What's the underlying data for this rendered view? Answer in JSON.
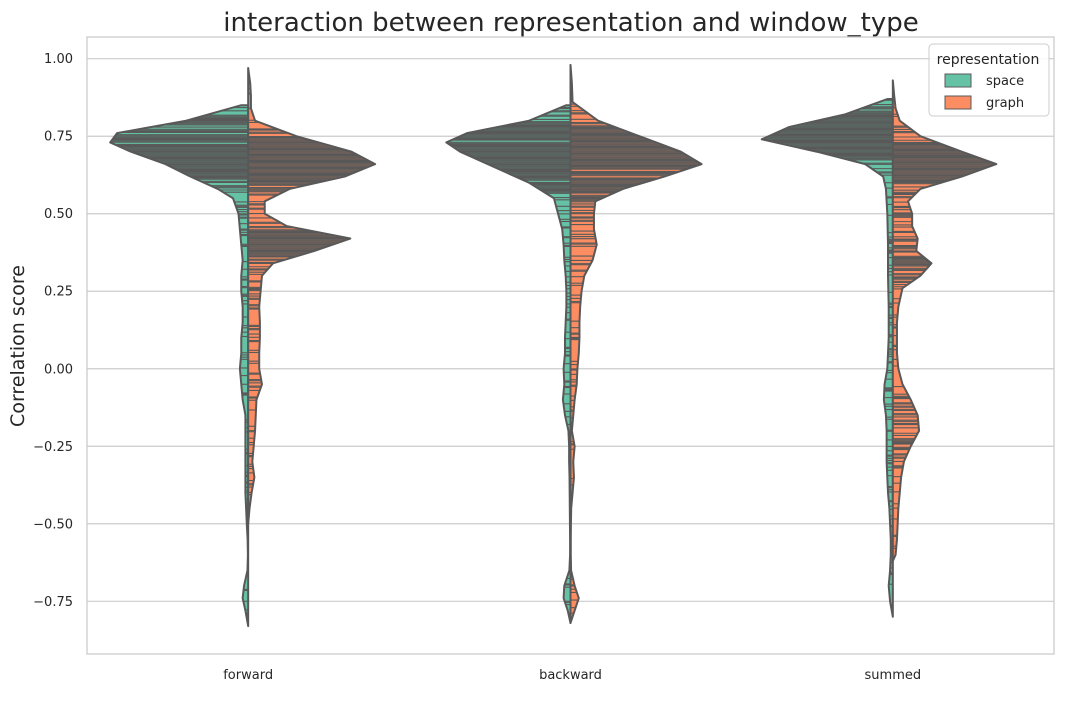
{
  "chart_data": {
    "type": "violin",
    "title": "interaction between representation and window_type",
    "xlabel": "",
    "ylabel": "Correlation score",
    "categories": [
      "forward",
      "backward",
      "summed"
    ],
    "ylim": [
      -0.92,
      1.07
    ],
    "yticks": [
      "1.00",
      "0.75",
      "0.50",
      "0.25",
      "0.00",
      "−0.25",
      "−0.50",
      "−0.75"
    ],
    "ytick_values": [
      1.0,
      0.75,
      0.5,
      0.25,
      0.0,
      -0.25,
      -0.5,
      -0.75
    ],
    "grid": "horizontal",
    "split": true,
    "inner": "stick",
    "legend": {
      "title": "representation",
      "placement": "top-right",
      "items": [
        {
          "name": "space",
          "color": "#66c2a5"
        },
        {
          "name": "graph",
          "color": "#fc8d62"
        }
      ]
    },
    "series": [
      {
        "name": "space",
        "color": "#66c2a5",
        "violins": [
          {
            "category": "forward",
            "range": [
              -0.83,
              0.85
            ],
            "density": [
              [
                0.85,
                0.05
              ],
              [
                0.8,
                0.45
              ],
              [
                0.76,
                0.95
              ],
              [
                0.73,
                1.0
              ],
              [
                0.7,
                0.85
              ],
              [
                0.66,
                0.6
              ],
              [
                0.62,
                0.42
              ],
              [
                0.58,
                0.22
              ],
              [
                0.55,
                0.11
              ],
              [
                0.5,
                0.07
              ],
              [
                0.45,
                0.06
              ],
              [
                0.4,
                0.05
              ],
              [
                0.35,
                0.04
              ],
              [
                0.3,
                0.05
              ],
              [
                0.25,
                0.05
              ],
              [
                0.2,
                0.04
              ],
              [
                0.15,
                0.04
              ],
              [
                0.1,
                0.05
              ],
              [
                0.05,
                0.05
              ],
              [
                0.0,
                0.06
              ],
              [
                -0.05,
                0.05
              ],
              [
                -0.1,
                0.04
              ],
              [
                -0.15,
                0.02
              ],
              [
                -0.2,
                0.02
              ],
              [
                -0.25,
                0.02
              ],
              [
                -0.3,
                0.02
              ],
              [
                -0.35,
                0.02
              ],
              [
                -0.4,
                0.02
              ],
              [
                -0.45,
                0.015
              ],
              [
                -0.5,
                0.01
              ],
              [
                -0.55,
                0.004
              ],
              [
                -0.6,
                0.002
              ],
              [
                -0.65,
                0.005
              ],
              [
                -0.7,
                0.03
              ],
              [
                -0.74,
                0.04
              ],
              [
                -0.78,
                0.02
              ],
              [
                -0.83,
                0.0
              ]
            ]
          },
          {
            "category": "backward",
            "range": [
              -0.82,
              0.85
            ],
            "density": [
              [
                0.85,
                0.03
              ],
              [
                0.8,
                0.3
              ],
              [
                0.76,
                0.75
              ],
              [
                0.73,
                0.9
              ],
              [
                0.7,
                0.8
              ],
              [
                0.65,
                0.55
              ],
              [
                0.6,
                0.3
              ],
              [
                0.55,
                0.12
              ],
              [
                0.5,
                0.09
              ],
              [
                0.45,
                0.06
              ],
              [
                0.4,
                0.05
              ],
              [
                0.35,
                0.045
              ],
              [
                0.3,
                0.035
              ],
              [
                0.25,
                0.03
              ],
              [
                0.2,
                0.03
              ],
              [
                0.15,
                0.035
              ],
              [
                0.1,
                0.04
              ],
              [
                0.05,
                0.04
              ],
              [
                0.0,
                0.05
              ],
              [
                -0.05,
                0.045
              ],
              [
                -0.1,
                0.055
              ],
              [
                -0.15,
                0.04
              ],
              [
                -0.2,
                0.015
              ],
              [
                -0.25,
                0.01
              ],
              [
                -0.3,
                0.01
              ],
              [
                -0.35,
                0.007
              ],
              [
                -0.4,
                0.006
              ],
              [
                -0.45,
                0.005
              ],
              [
                -0.5,
                0.004
              ],
              [
                -0.55,
                0.003
              ],
              [
                -0.6,
                0.003
              ],
              [
                -0.65,
                0.008
              ],
              [
                -0.7,
                0.045
              ],
              [
                -0.74,
                0.05
              ],
              [
                -0.78,
                0.02
              ],
              [
                -0.82,
                0.0
              ]
            ]
          },
          {
            "category": "summed",
            "range": [
              -0.8,
              0.87
            ],
            "density": [
              [
                0.87,
                0.04
              ],
              [
                0.82,
                0.35
              ],
              [
                0.78,
                0.75
              ],
              [
                0.74,
                0.95
              ],
              [
                0.7,
                0.55
              ],
              [
                0.66,
                0.2
              ],
              [
                0.62,
                0.07
              ],
              [
                0.58,
                0.05
              ],
              [
                0.5,
                0.04
              ],
              [
                0.4,
                0.035
              ],
              [
                0.3,
                0.035
              ],
              [
                0.2,
                0.03
              ],
              [
                0.1,
                0.03
              ],
              [
                0.0,
                0.04
              ],
              [
                -0.05,
                0.06
              ],
              [
                -0.1,
                0.065
              ],
              [
                -0.15,
                0.05
              ],
              [
                -0.2,
                0.045
              ],
              [
                -0.25,
                0.045
              ],
              [
                -0.3,
                0.045
              ],
              [
                -0.35,
                0.04
              ],
              [
                -0.4,
                0.035
              ],
              [
                -0.45,
                0.025
              ],
              [
                -0.5,
                0.02
              ],
              [
                -0.55,
                0.015
              ],
              [
                -0.6,
                0.015
              ],
              [
                -0.65,
                0.02
              ],
              [
                -0.7,
                0.03
              ],
              [
                -0.75,
                0.02
              ],
              [
                -0.8,
                0.0
              ]
            ]
          }
        ]
      },
      {
        "name": "graph",
        "color": "#fc8d62",
        "violins": [
          {
            "category": "forward",
            "range": [
              -0.5,
              0.97
            ],
            "density": [
              [
                0.97,
                0.0
              ],
              [
                0.92,
                0.015
              ],
              [
                0.88,
                0.02
              ],
              [
                0.84,
                0.02
              ],
              [
                0.8,
                0.05
              ],
              [
                0.75,
                0.35
              ],
              [
                0.7,
                0.75
              ],
              [
                0.66,
                0.92
              ],
              [
                0.62,
                0.7
              ],
              [
                0.58,
                0.3
              ],
              [
                0.54,
                0.12
              ],
              [
                0.5,
                0.12
              ],
              [
                0.46,
                0.28
              ],
              [
                0.42,
                0.74
              ],
              [
                0.38,
                0.48
              ],
              [
                0.34,
                0.18
              ],
              [
                0.3,
                0.1
              ],
              [
                0.25,
                0.09
              ],
              [
                0.2,
                0.08
              ],
              [
                0.15,
                0.085
              ],
              [
                0.1,
                0.085
              ],
              [
                0.05,
                0.08
              ],
              [
                0.0,
                0.08
              ],
              [
                -0.05,
                0.1
              ],
              [
                -0.1,
                0.06
              ],
              [
                -0.15,
                0.055
              ],
              [
                -0.2,
                0.05
              ],
              [
                -0.25,
                0.04
              ],
              [
                -0.3,
                0.03
              ],
              [
                -0.35,
                0.045
              ],
              [
                -0.4,
                0.025
              ],
              [
                -0.45,
                0.01
              ],
              [
                -0.5,
                0.0
              ]
            ]
          },
          {
            "category": "backward",
            "range": [
              -0.82,
              0.98
            ],
            "density": [
              [
                0.98,
                0.0
              ],
              [
                0.92,
                0.01
              ],
              [
                0.86,
                0.015
              ],
              [
                0.8,
                0.2
              ],
              [
                0.75,
                0.5
              ],
              [
                0.7,
                0.8
              ],
              [
                0.66,
                0.95
              ],
              [
                0.62,
                0.68
              ],
              [
                0.58,
                0.38
              ],
              [
                0.54,
                0.18
              ],
              [
                0.5,
                0.17
              ],
              [
                0.45,
                0.17
              ],
              [
                0.4,
                0.19
              ],
              [
                0.35,
                0.16
              ],
              [
                0.3,
                0.1
              ],
              [
                0.25,
                0.08
              ],
              [
                0.2,
                0.07
              ],
              [
                0.15,
                0.065
              ],
              [
                0.1,
                0.065
              ],
              [
                0.05,
                0.06
              ],
              [
                0.0,
                0.05
              ],
              [
                -0.05,
                0.045
              ],
              [
                -0.1,
                0.03
              ],
              [
                -0.15,
                0.02
              ],
              [
                -0.2,
                0.01
              ],
              [
                -0.25,
                0.03
              ],
              [
                -0.3,
                0.02
              ],
              [
                -0.35,
                0.025
              ],
              [
                -0.4,
                0.015
              ],
              [
                -0.45,
                0.005
              ],
              [
                -0.5,
                0.003
              ],
              [
                -0.55,
                0.002
              ],
              [
                -0.6,
                0.002
              ],
              [
                -0.65,
                0.004
              ],
              [
                -0.7,
                0.03
              ],
              [
                -0.74,
                0.06
              ],
              [
                -0.78,
                0.03
              ],
              [
                -0.82,
                0.0
              ]
            ]
          },
          {
            "category": "summed",
            "range": [
              -0.62,
              0.93
            ],
            "density": [
              [
                0.93,
                0.0
              ],
              [
                0.88,
                0.01
              ],
              [
                0.84,
                0.02
              ],
              [
                0.8,
                0.05
              ],
              [
                0.75,
                0.2
              ],
              [
                0.7,
                0.5
              ],
              [
                0.66,
                0.75
              ],
              [
                0.62,
                0.5
              ],
              [
                0.58,
                0.2
              ],
              [
                0.54,
                0.11
              ],
              [
                0.5,
                0.14
              ],
              [
                0.46,
                0.14
              ],
              [
                0.42,
                0.18
              ],
              [
                0.38,
                0.17
              ],
              [
                0.34,
                0.28
              ],
              [
                0.3,
                0.2
              ],
              [
                0.26,
                0.07
              ],
              [
                0.2,
                0.04
              ],
              [
                0.15,
                0.03
              ],
              [
                0.1,
                0.03
              ],
              [
                0.05,
                0.03
              ],
              [
                0.0,
                0.04
              ],
              [
                -0.05,
                0.07
              ],
              [
                -0.1,
                0.13
              ],
              [
                -0.15,
                0.18
              ],
              [
                -0.2,
                0.19
              ],
              [
                -0.25,
                0.13
              ],
              [
                -0.3,
                0.08
              ],
              [
                -0.35,
                0.06
              ],
              [
                -0.4,
                0.05
              ],
              [
                -0.45,
                0.04
              ],
              [
                -0.5,
                0.035
              ],
              [
                -0.55,
                0.03
              ],
              [
                -0.6,
                0.02
              ],
              [
                -0.62,
                0.0
              ]
            ]
          }
        ]
      }
    ]
  }
}
